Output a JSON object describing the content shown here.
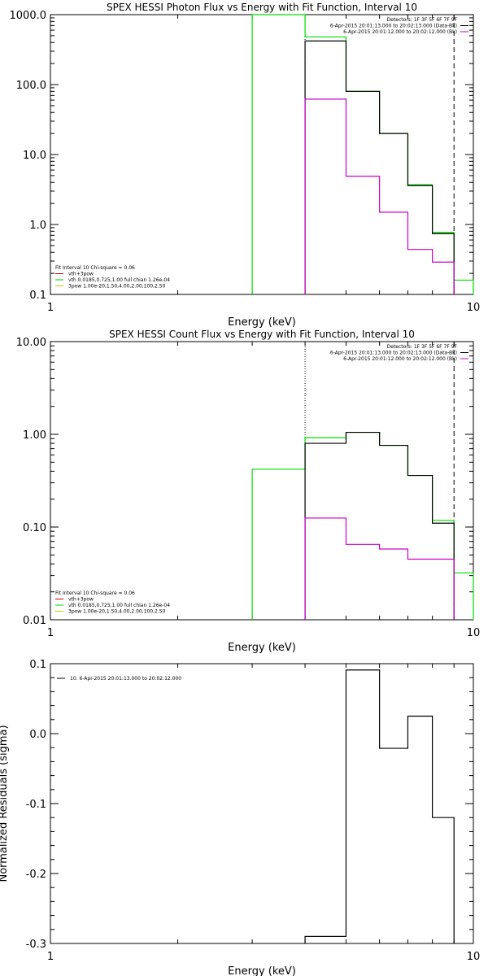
{
  "chart_data": [
    {
      "type": "line",
      "title": "SPEX HESSI Photon Flux vs Energy with Fit Function, Interval 10",
      "xlabel": "Energy (keV)",
      "ylabel": "",
      "xscale": "log",
      "yscale": "log",
      "xlim": [
        1,
        10
      ],
      "ylim": [
        0.1,
        1000
      ],
      "xtick_labels": [
        {
          "v": 1,
          "t": "1"
        },
        {
          "v": 10,
          "t": "10"
        }
      ],
      "ytick_labels": [
        {
          "v": 0.1,
          "t": "0.1"
        },
        {
          "v": 1,
          "t": "1.0"
        },
        {
          "v": 10,
          "t": "10.0"
        },
        {
          "v": 100,
          "t": "100.0"
        },
        {
          "v": 1000,
          "t": "1000.0"
        }
      ],
      "vlines": [
        {
          "x": 4.0,
          "style": "dotted",
          "color": "#000000"
        },
        {
          "x": 9.0,
          "style": "dashed",
          "color": "#000000"
        }
      ],
      "legend_tr": [
        {
          "text": "Detectors: 1F 3F 5F 6F 7F 9F",
          "color": ""
        },
        {
          "text": "6-Apr-2015 20:01:13.000 to 20:02:13.000 (Data-Bk)",
          "color": "#000000"
        },
        {
          "text": "6-Apr-2015 20:01:12.000 to 20:02:12.000 (Bk)",
          "color": "#cc00cc"
        }
      ],
      "legend_bl": [
        {
          "text": "Fit Interval 10   Chi-square = 0.06",
          "color": ""
        },
        {
          "text": "vth+3pow",
          "color": "#cc0000"
        },
        {
          "text": "vth 0.0185,0.725,1.00  full chian 1.26e-04",
          "color": "#00cc00"
        },
        {
          "text": "3pow 1.00e-20,1.50,4.00,2.00,100,2.50",
          "color": "#cccc00"
        }
      ],
      "series": [
        {
          "color": "#00dd00",
          "values": [
            [
              3.0,
              4.0,
              1000
            ],
            [
              4.0,
              5.0,
              480
            ],
            [
              5.0,
              6.0,
              80
            ],
            [
              6.0,
              7.0,
              20
            ],
            [
              7.0,
              8.0,
              3.7
            ],
            [
              8.0,
              9.0,
              0.77
            ],
            [
              9.0,
              10.0,
              0.16
            ]
          ]
        },
        {
          "color": "#000000",
          "values": [
            [
              4.0,
              5.0,
              420
            ],
            [
              5.0,
              6.0,
              80
            ],
            [
              6.0,
              7.0,
              20
            ],
            [
              7.0,
              8.0,
              3.6
            ],
            [
              8.0,
              9.0,
              0.74
            ]
          ]
        },
        {
          "color": "#cc00cc",
          "values": [
            [
              4.0,
              5.0,
              62
            ],
            [
              5.0,
              6.0,
              4.9
            ],
            [
              6.0,
              7.0,
              1.5
            ],
            [
              7.0,
              8.0,
              0.44
            ],
            [
              8.0,
              9.0,
              0.29
            ]
          ]
        }
      ]
    },
    {
      "type": "line",
      "title": "SPEX HESSI Count Flux vs Energy with Fit Function, Interval 10",
      "xlabel": "Energy (keV)",
      "ylabel": "",
      "xscale": "log",
      "yscale": "log",
      "xlim": [
        1,
        10
      ],
      "ylim": [
        0.01,
        10
      ],
      "xtick_labels": [
        {
          "v": 1,
          "t": "1"
        },
        {
          "v": 10,
          "t": "10"
        }
      ],
      "ytick_labels": [
        {
          "v": 0.01,
          "t": "0.01"
        },
        {
          "v": 0.1,
          "t": "0.10"
        },
        {
          "v": 1,
          "t": "1.00"
        },
        {
          "v": 10,
          "t": "10.00"
        }
      ],
      "vlines": [
        {
          "x": 4.0,
          "style": "dotted",
          "color": "#000000"
        },
        {
          "x": 9.0,
          "style": "dashed",
          "color": "#000000"
        }
      ],
      "legend_tr": [
        {
          "text": "Detectors: 1F 3F 5F 6F 7F 9F",
          "color": ""
        },
        {
          "text": "6-Apr-2015 20:01:13.000 to 20:02:13.000 (Data-Bk)",
          "color": "#000000"
        },
        {
          "text": "6-Apr-2015 20:01:12.000 to 20:02:12.000 (Bk)",
          "color": "#cc00cc"
        }
      ],
      "legend_bl": [
        {
          "text": "Fit Interval 10   Chi-square = 0.06",
          "color": ""
        },
        {
          "text": "vth+3pow",
          "color": "#cc0000"
        },
        {
          "text": "vth 0.0185,0.725,1.00  full chian 1.26e-04",
          "color": "#00cc00"
        },
        {
          "text": "3pow 1.00e-20,1.50,4.00,2.00,100,2.50",
          "color": "#cccc00"
        }
      ],
      "series": [
        {
          "color": "#00dd00",
          "values": [
            [
              3.0,
              4.0,
              0.42
            ],
            [
              4.0,
              5.0,
              0.92
            ],
            [
              5.0,
              6.0,
              1.05
            ],
            [
              6.0,
              7.0,
              0.76
            ],
            [
              7.0,
              8.0,
              0.36
            ],
            [
              8.0,
              9.0,
              0.118
            ],
            [
              9.0,
              10.0,
              0.032
            ]
          ]
        },
        {
          "color": "#000000",
          "values": [
            [
              4.0,
              5.0,
              0.8
            ],
            [
              5.0,
              6.0,
              1.05
            ],
            [
              6.0,
              7.0,
              0.76
            ],
            [
              7.0,
              8.0,
              0.36
            ],
            [
              8.0,
              9.0,
              0.11
            ]
          ]
        },
        {
          "color": "#cc00cc",
          "values": [
            [
              4.0,
              5.0,
              0.125
            ],
            [
              5.0,
              6.0,
              0.065
            ],
            [
              6.0,
              7.0,
              0.058
            ],
            [
              7.0,
              8.0,
              0.045
            ],
            [
              8.0,
              9.0,
              0.045
            ]
          ]
        }
      ]
    },
    {
      "type": "line",
      "title": "",
      "xlabel": "Energy (keV)",
      "ylabel": "Normalized Residuals (sigma)",
      "xscale": "log",
      "yscale": "linear",
      "xlim": [
        1,
        10
      ],
      "ylim": [
        -0.3,
        0.1
      ],
      "xtick_labels": [
        {
          "v": 1,
          "t": "1"
        },
        {
          "v": 10,
          "t": "10"
        }
      ],
      "ytick_labels": [
        {
          "v": -0.3,
          "t": "-0.3"
        },
        {
          "v": -0.2,
          "t": "-0.2"
        },
        {
          "v": -0.1,
          "t": "-0.1"
        },
        {
          "v": 0.0,
          "t": "0.0"
        },
        {
          "v": 0.1,
          "t": "0.1"
        }
      ],
      "vlines": [],
      "legend_tl": [
        {
          "text": "10.  6-Apr-2015 20:01:13.000 to 20:02:12.000",
          "color": "#000000"
        }
      ],
      "series": [
        {
          "color": "#000000",
          "values": [
            [
              4.0,
              5.0,
              -0.29
            ],
            [
              5.0,
              6.0,
              0.091
            ],
            [
              6.0,
              7.0,
              -0.021
            ],
            [
              7.0,
              8.0,
              0.025
            ],
            [
              8.0,
              9.0,
              -0.12
            ],
            [
              9.0,
              9.0,
              -0.3
            ]
          ]
        }
      ]
    }
  ]
}
